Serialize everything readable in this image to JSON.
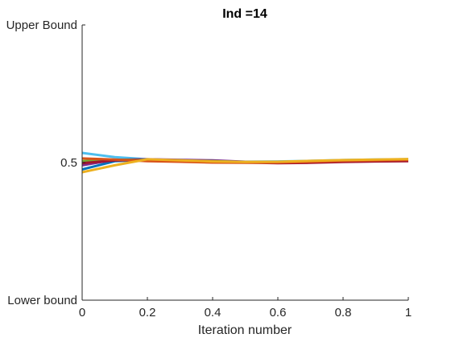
{
  "chart_data": {
    "type": "line",
    "title": "Ind =14",
    "xlabel": "Iteration number",
    "ylabel": "",
    "xlim": [
      0,
      1
    ],
    "ylim": [
      0,
      1
    ],
    "x_ticks": [
      "0",
      "0.2",
      "0.4",
      "0.6",
      "0.8",
      "1"
    ],
    "y_ticks": [
      {
        "value": 0,
        "label": "Lower bound"
      },
      {
        "value": 0.5,
        "label": "0.5"
      },
      {
        "value": 1,
        "label": "Upper Bound"
      }
    ],
    "grid": false,
    "legend": "none",
    "x": [
      0,
      0.1,
      0.2,
      0.3,
      0.4,
      0.5,
      0.6,
      0.7,
      0.8,
      0.9,
      1.0
    ],
    "series": [
      {
        "color": "#4DBEEE",
        "values": [
          0.535,
          0.52,
          0.512,
          0.508,
          0.505,
          0.503,
          0.504,
          0.506,
          0.509,
          0.511,
          0.512
        ]
      },
      {
        "color": "#0072BD",
        "values": [
          0.475,
          0.505,
          0.51,
          0.507,
          0.502,
          0.5,
          0.501,
          0.503,
          0.505,
          0.507,
          0.508
        ]
      },
      {
        "color": "#7E2F8E",
        "values": [
          0.49,
          0.51,
          0.512,
          0.51,
          0.508,
          0.503,
          0.502,
          0.503,
          0.505,
          0.506,
          0.507
        ]
      },
      {
        "color": "#77AC30",
        "values": [
          0.505,
          0.51,
          0.51,
          0.508,
          0.505,
          0.502,
          0.503,
          0.504,
          0.507,
          0.508,
          0.509
        ]
      },
      {
        "color": "#A2142F",
        "values": [
          0.498,
          0.508,
          0.509,
          0.507,
          0.503,
          0.5,
          0.498,
          0.499,
          0.502,
          0.504,
          0.505
        ]
      },
      {
        "color": "#D95319",
        "values": [
          0.515,
          0.511,
          0.505,
          0.503,
          0.5,
          0.499,
          0.5,
          0.503,
          0.506,
          0.508,
          0.51
        ]
      },
      {
        "color": "#EDB120",
        "values": [
          0.465,
          0.49,
          0.512,
          0.508,
          0.504,
          0.502,
          0.503,
          0.506,
          0.509,
          0.511,
          0.513
        ]
      }
    ]
  }
}
